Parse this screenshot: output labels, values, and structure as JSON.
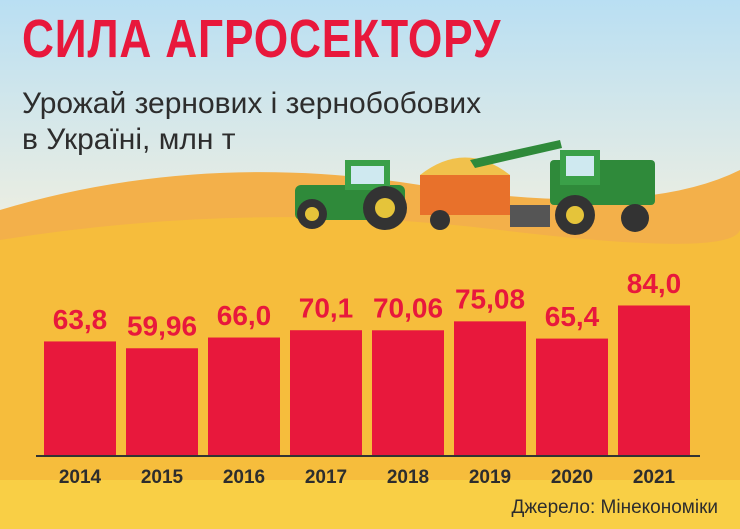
{
  "chart_data": {
    "type": "bar",
    "title": "СИЛА АГРОСЕКТОРУ",
    "subtitle": "Урожай зернових і зернобобових в Україні, млн т",
    "categories": [
      "2014",
      "2015",
      "2016",
      "2017",
      "2018",
      "2019",
      "2020",
      "2021"
    ],
    "values": [
      63.8,
      59.96,
      66.0,
      70.1,
      70.06,
      75.08,
      65.4,
      84.0
    ],
    "value_labels": [
      "63,8",
      "59,96",
      "66,0",
      "70,1",
      "70,06",
      "75,08",
      "65,4",
      "84,0"
    ],
    "color": "#e8183c",
    "source": "Джерело: Мінекономіки"
  }
}
